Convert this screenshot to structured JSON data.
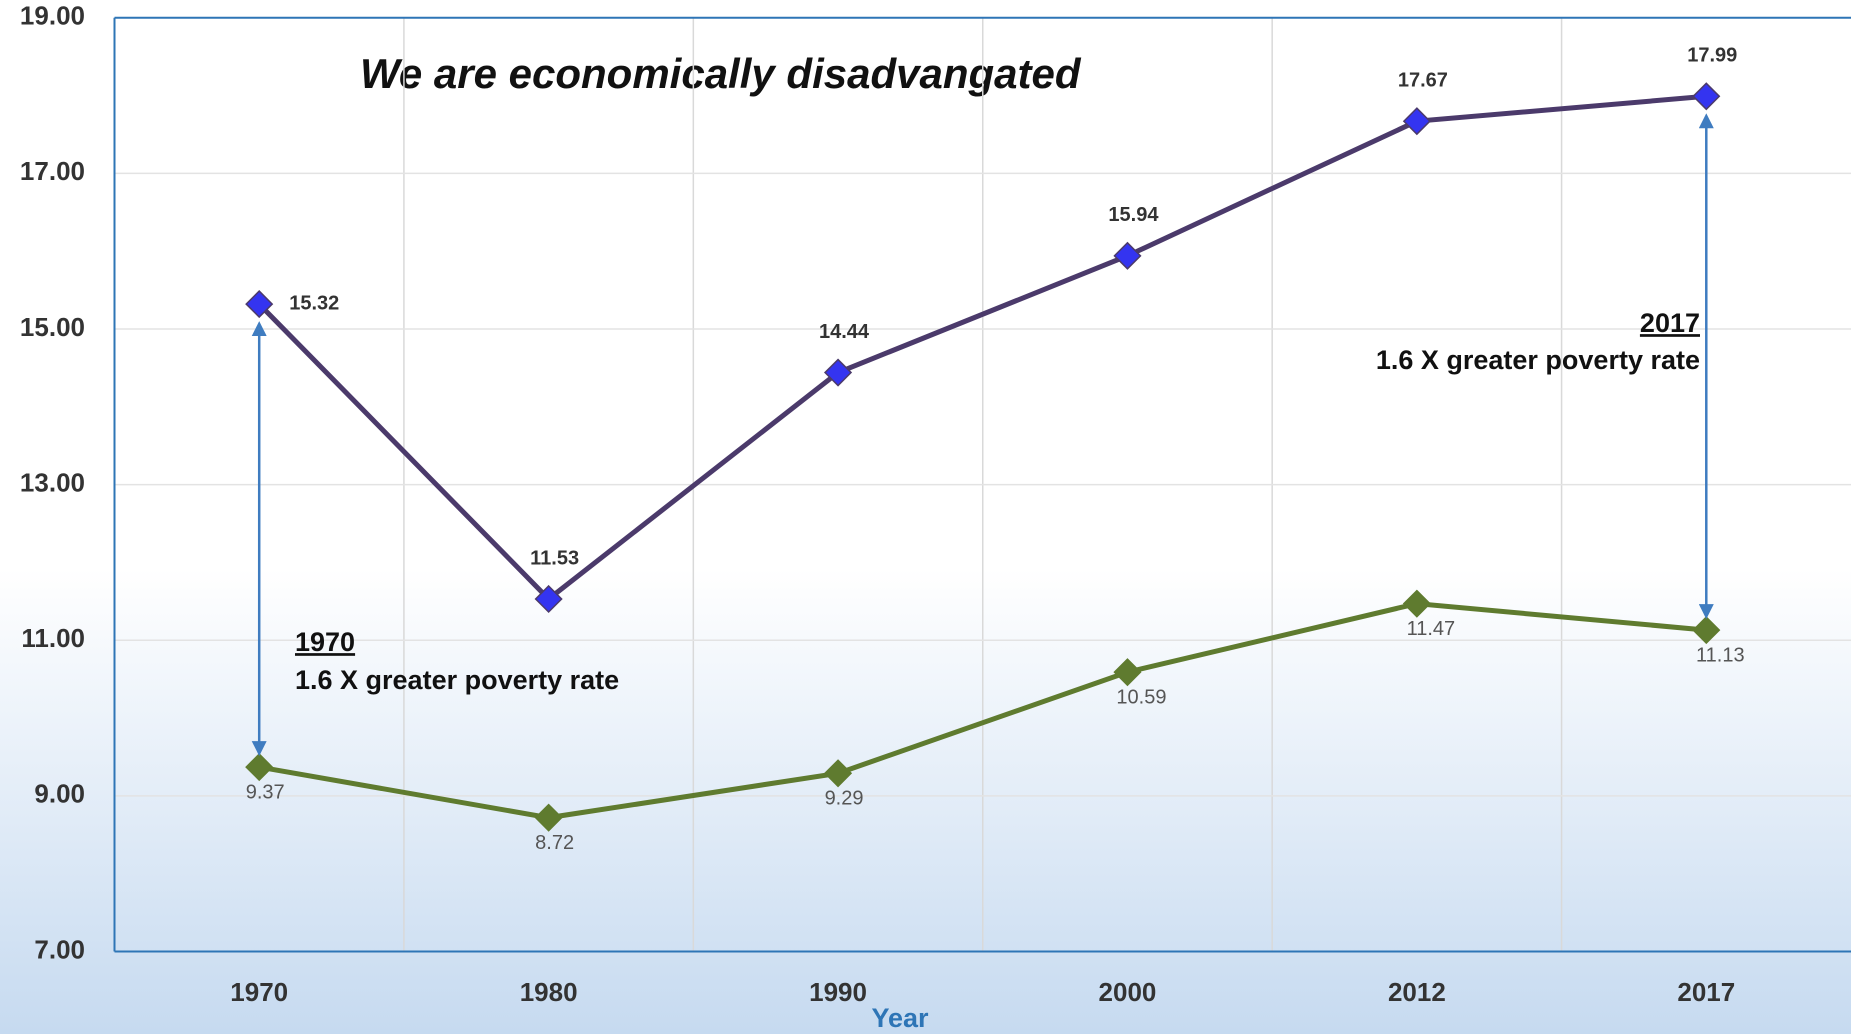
{
  "chart_data": {
    "type": "line",
    "title": "We are economically disadvangated",
    "x_label": "Year",
    "categories": [
      "1970",
      "1980",
      "1990",
      "2000",
      "2012",
      "2017"
    ],
    "series": [
      {
        "color": "#4b3a6b",
        "marker_color": "#3434f0",
        "values": [
          15.32,
          11.53,
          14.44,
          15.94,
          17.67,
          17.99
        ]
      },
      {
        "color": "#5f7b2f",
        "marker_color": "#5f7b2f",
        "values": [
          9.37,
          8.72,
          9.29,
          10.59,
          11.47,
          11.13
        ]
      }
    ],
    "ylim": [
      7,
      19
    ],
    "yticks": [
      {
        "value": 7,
        "label": "7.00"
      },
      {
        "value": 9,
        "label": "9.00"
      },
      {
        "value": 11,
        "label": "11.00"
      },
      {
        "value": 13,
        "label": "13.00"
      },
      {
        "value": 15,
        "label": "15.00"
      },
      {
        "value": 17,
        "label": "17.00"
      },
      {
        "value": 19,
        "label": "19.00"
      }
    ],
    "grid": true,
    "annotations": [
      {
        "heading": "1970",
        "text": "1.6 X greater poverty rate"
      },
      {
        "heading": "2017",
        "text": "1.6 X greater poverty rate"
      }
    ]
  }
}
